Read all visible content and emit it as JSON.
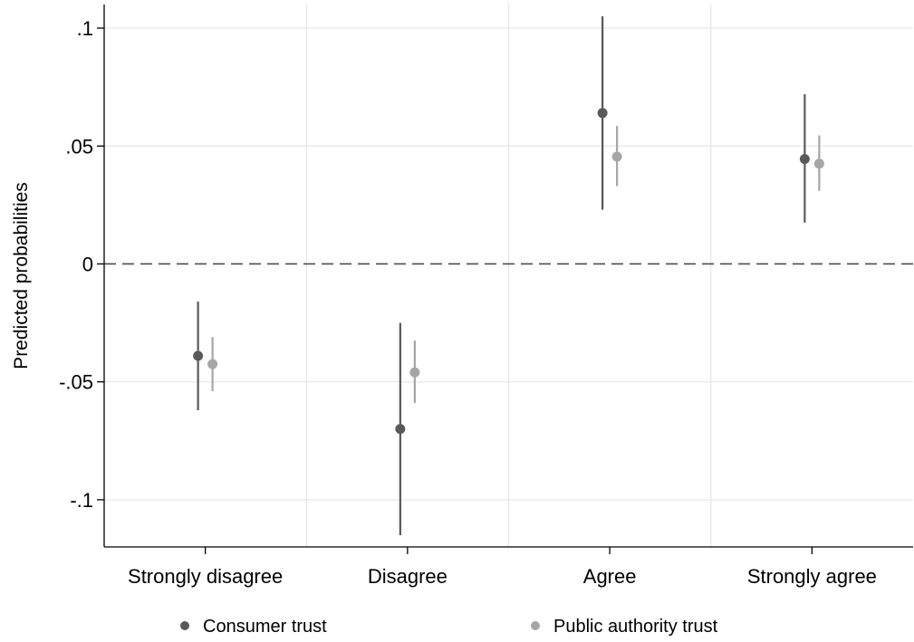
{
  "chart_data": {
    "type": "scatter",
    "subtype": "point-estimate-with-confidence-intervals",
    "title": "",
    "xlabel": "",
    "ylabel": "Predicted probabilities",
    "categories": [
      "Strongly disagree",
      "Disagree",
      "Agree",
      "Strongly agree"
    ],
    "ylim": [
      -0.12,
      0.11
    ],
    "yticks": [
      {
        "value": 0.1,
        "label": ".1"
      },
      {
        "value": 0.05,
        "label": ".05"
      },
      {
        "value": 0,
        "label": "0"
      },
      {
        "value": -0.05,
        "label": "-.05"
      },
      {
        "value": -0.1,
        "label": "-.1"
      }
    ],
    "grid": true,
    "reference_line": {
      "y": 0,
      "style": "dashed"
    },
    "legend_position": "bottom",
    "series": [
      {
        "name": "Consumer trust",
        "color": "#595959",
        "values": [
          -0.039,
          -0.07,
          0.064,
          0.0445
        ],
        "ci_low": [
          -0.062,
          -0.115,
          0.023,
          0.0175
        ],
        "ci_high": [
          -0.016,
          -0.025,
          0.105,
          0.072
        ]
      },
      {
        "name": "Public authority trust",
        "color": "#a6a6a6",
        "values": [
          -0.0425,
          -0.046,
          0.0455,
          0.0425
        ],
        "ci_low": [
          -0.054,
          -0.059,
          0.033,
          0.031
        ],
        "ci_high": [
          -0.031,
          -0.0325,
          0.0585,
          0.0545
        ]
      }
    ],
    "colors": {
      "grid": "#e6e6e6",
      "axis": "#000000",
      "reference": "#4d4d4d"
    }
  }
}
